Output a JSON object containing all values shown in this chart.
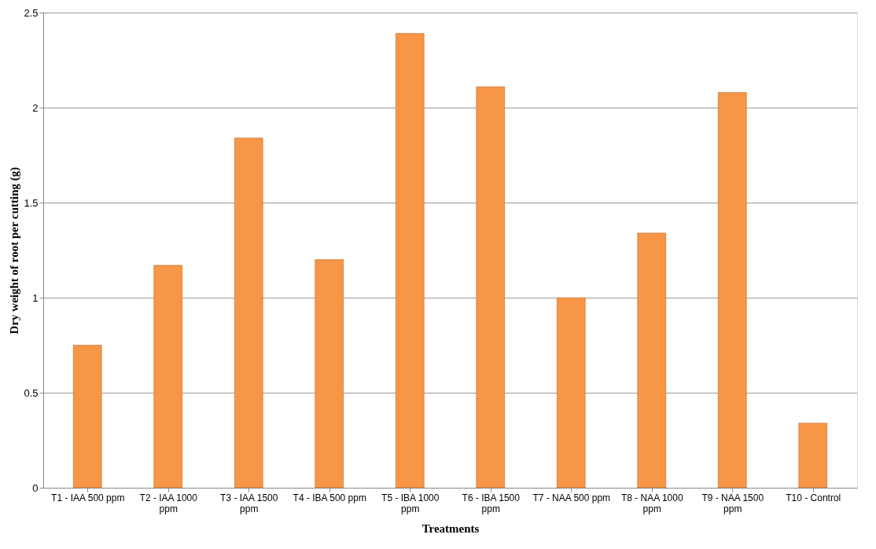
{
  "chart_data": {
    "type": "bar",
    "xlabel": "Treatments",
    "ylabel": "Dry weight of root per cutting (g)",
    "categories": [
      "T1 - IAA 500 ppm",
      "T2 - IAA 1000 ppm",
      "T3 - IAA 1500 ppm",
      "T4 - IBA 500 ppm",
      "T5 - IBA 1000 ppm",
      "T6 - IBA 1500 ppm",
      "T7 - NAA 500 ppm",
      "T8 - NAA 1000 ppm",
      "T9 - NAA 1500 ppm",
      "T10 - Control"
    ],
    "values": [
      0.75,
      1.17,
      1.84,
      1.2,
      2.39,
      2.11,
      1.0,
      1.34,
      2.08,
      0.34
    ],
    "color": "#f79646",
    "ylim": [
      0,
      2.5
    ],
    "yticks": [
      0,
      0.5,
      1,
      1.5,
      2,
      2.5
    ],
    "grid": "y"
  }
}
